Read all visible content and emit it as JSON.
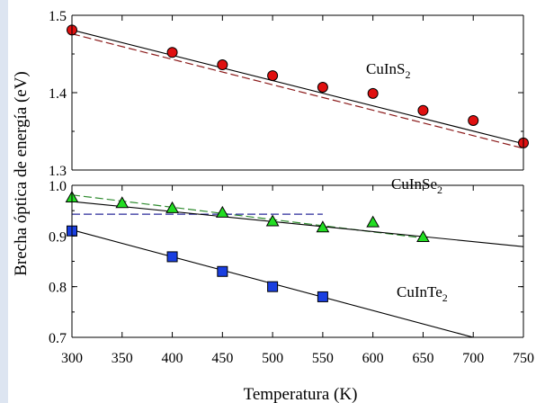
{
  "chart_data": {
    "type": "line",
    "xlabel": "Temperatura (K)",
    "ylabel": "Brecha óptica de energía (eV)",
    "x_ticks": [
      300,
      350,
      400,
      450,
      500,
      550,
      600,
      650,
      700,
      750
    ],
    "xlim": [
      300,
      750
    ],
    "panels": [
      {
        "ylim": [
          1.3,
          1.5
        ],
        "y_ticks": [
          "1.3",
          "1.4",
          "1.5"
        ],
        "series": [
          {
            "name": "CuInS2",
            "label_main": "CuInS",
            "label_sub": "2",
            "marker": "circle",
            "color": "#e01010",
            "x": [
              300,
              400,
              450,
              500,
              550,
              600,
              650,
              700,
              750
            ],
            "y": [
              1.481,
              1.452,
              1.436,
              1.422,
              1.407,
              1.399,
              1.377,
              1.364,
              1.335
            ],
            "fit_solid": [
              [
                300,
                1.481
              ],
              [
                750,
                1.334
              ]
            ],
            "fit_dashed": [
              [
                300,
                1.476
              ],
              [
                750,
                1.328
              ]
            ],
            "dashed_color": "#8b1a1a"
          }
        ]
      },
      {
        "ylim": [
          0.7,
          1.0
        ],
        "y_ticks": [
          "0.7",
          "0.8",
          "0.9",
          "1.0"
        ],
        "series": [
          {
            "name": "CuInSe2",
            "label_main": "CuInSe",
            "label_sub": "2",
            "marker": "triangle",
            "color": "#22dd22",
            "x": [
              300,
              350,
              400,
              450,
              500,
              550,
              600,
              650
            ],
            "y": [
              0.976,
              0.965,
              0.955,
              0.946,
              0.929,
              0.917,
              0.927,
              0.898
            ],
            "fit_solid": [
              [
                300,
                0.968
              ],
              [
                750,
                0.879
              ]
            ],
            "fit_dashed": [
              [
                300,
                0.981
              ],
              [
                650,
                0.896
              ]
            ],
            "dashed_color": "#2e8b2e",
            "fit_dashed2": [
              [
                300,
                0.943
              ],
              [
                550,
                0.943
              ]
            ],
            "dashed2_color": "#2a2a9a"
          },
          {
            "name": "CuInTe2",
            "label_main": "CuInTe",
            "label_sub": "2",
            "marker": "square",
            "color": "#1a3fe0",
            "x": [
              300,
              400,
              450,
              500,
              550
            ],
            "y": [
              0.91,
              0.859,
              0.83,
              0.8,
              0.78
            ],
            "fit_solid": [
              [
                300,
                0.912
              ],
              [
                700,
                0.7
              ]
            ]
          }
        ]
      }
    ]
  }
}
